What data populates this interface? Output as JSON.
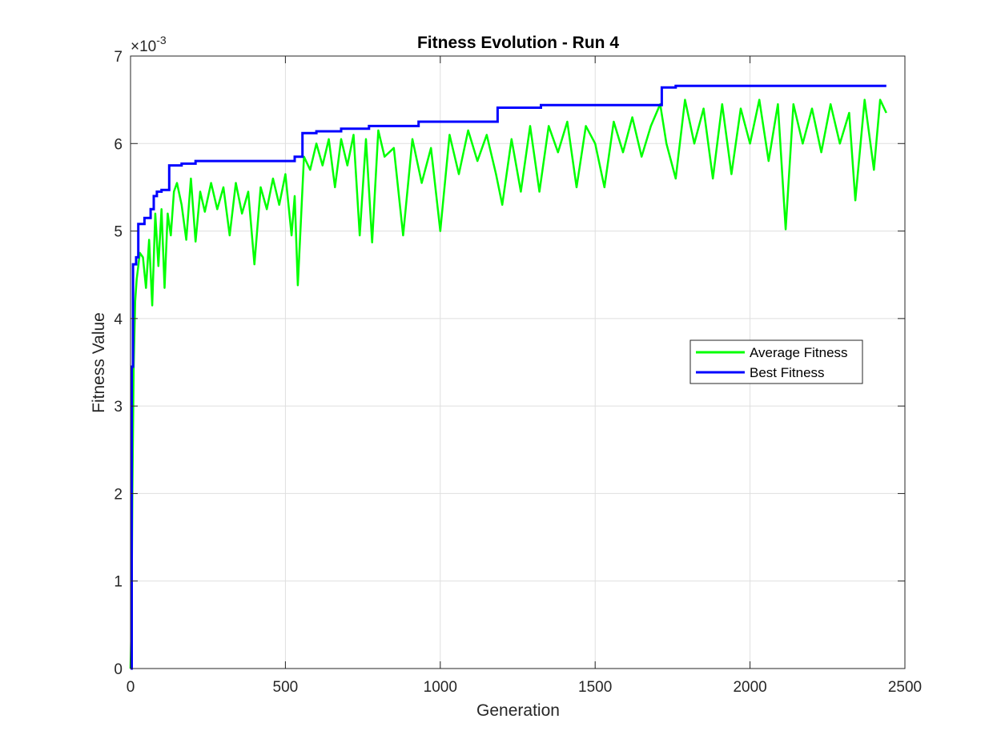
{
  "chart_data": {
    "type": "line",
    "title": "Fitness Evolution - Run 4",
    "xlabel": "Generation",
    "ylabel": "Fitness Value",
    "exponent_label": "×10",
    "exponent_power": "-3",
    "xlim": [
      0,
      2500
    ],
    "ylim": [
      0,
      7
    ],
    "xticks": [
      0,
      500,
      1000,
      1500,
      2000,
      2500
    ],
    "xtick_labels": [
      "0",
      "500",
      "1000",
      "1500",
      "2000",
      "2500"
    ],
    "yticks": [
      0,
      1,
      2,
      3,
      4,
      5,
      6,
      7
    ],
    "ytick_labels": [
      "0",
      "1",
      "2",
      "3",
      "4",
      "5",
      "6",
      "7"
    ],
    "grid": true,
    "legend_position": "right",
    "series": [
      {
        "name": "Average Fitness",
        "color": "#00ff00",
        "x": [
          0,
          3,
          6,
          10,
          15,
          20,
          25,
          30,
          40,
          50,
          60,
          70,
          80,
          90,
          100,
          110,
          120,
          130,
          140,
          150,
          165,
          180,
          195,
          210,
          225,
          240,
          260,
          280,
          300,
          320,
          340,
          360,
          380,
          400,
          420,
          440,
          460,
          480,
          500,
          520,
          530,
          540,
          560,
          580,
          600,
          620,
          640,
          660,
          680,
          700,
          720,
          740,
          760,
          780,
          800,
          820,
          850,
          880,
          910,
          940,
          970,
          1000,
          1030,
          1060,
          1090,
          1120,
          1150,
          1180,
          1200,
          1230,
          1260,
          1290,
          1320,
          1350,
          1380,
          1410,
          1440,
          1470,
          1500,
          1530,
          1560,
          1590,
          1620,
          1650,
          1680,
          1710,
          1730,
          1760,
          1790,
          1820,
          1850,
          1880,
          1910,
          1940,
          1970,
          2000,
          2030,
          2060,
          2090,
          2115,
          2140,
          2170,
          2200,
          2230,
          2260,
          2290,
          2320,
          2340,
          2370,
          2400,
          2420,
          2440
        ],
        "values": [
          0.0,
          0.5,
          2.0,
          3.45,
          4.2,
          4.45,
          4.6,
          4.75,
          4.7,
          4.35,
          4.9,
          4.15,
          5.2,
          4.6,
          5.25,
          4.35,
          5.2,
          4.95,
          5.45,
          5.55,
          5.3,
          4.9,
          5.6,
          4.88,
          5.45,
          5.22,
          5.55,
          5.25,
          5.5,
          4.95,
          5.55,
          5.2,
          5.45,
          4.62,
          5.5,
          5.25,
          5.6,
          5.3,
          5.65,
          4.95,
          5.4,
          4.38,
          5.85,
          5.7,
          6.0,
          5.75,
          6.05,
          5.5,
          6.05,
          5.75,
          6.1,
          4.95,
          6.05,
          4.87,
          6.15,
          5.85,
          5.95,
          4.95,
          6.05,
          5.55,
          5.95,
          5.0,
          6.1,
          5.65,
          6.15,
          5.8,
          6.1,
          5.65,
          5.3,
          6.05,
          5.45,
          6.2,
          5.45,
          6.2,
          5.9,
          6.25,
          5.5,
          6.2,
          6.0,
          5.5,
          6.25,
          5.9,
          6.3,
          5.85,
          6.2,
          6.45,
          6.0,
          5.6,
          6.5,
          6.0,
          6.4,
          5.6,
          6.45,
          5.65,
          6.4,
          6.0,
          6.5,
          5.8,
          6.45,
          5.02,
          6.45,
          6.0,
          6.4,
          5.9,
          6.45,
          6.0,
          6.35,
          5.35,
          6.5,
          5.7,
          6.5,
          6.35
        ]
      },
      {
        "name": "Best Fitness",
        "color": "#0000ff",
        "x": [
          0,
          4,
          8,
          18,
          25,
          45,
          65,
          75,
          85,
          100,
          125,
          140,
          165,
          210,
          230,
          530,
          555,
          600,
          680,
          770,
          930,
          1185,
          1325,
          1715,
          1760,
          2440
        ],
        "values": [
          0.0,
          3.45,
          4.62,
          4.7,
          5.08,
          5.15,
          5.25,
          5.4,
          5.45,
          5.47,
          5.75,
          5.75,
          5.77,
          5.8,
          5.8,
          5.85,
          6.12,
          6.14,
          6.17,
          6.2,
          6.25,
          6.41,
          6.44,
          6.64,
          6.66,
          6.66
        ]
      }
    ]
  }
}
